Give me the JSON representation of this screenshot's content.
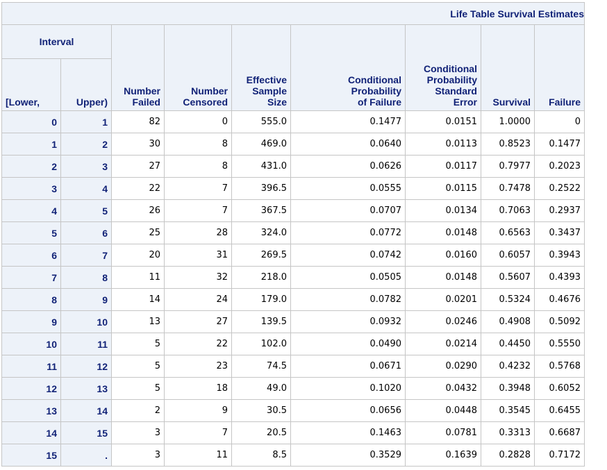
{
  "title": "Life Table Survival Estimates",
  "headers": {
    "interval": "Interval",
    "lower": "[Lower,",
    "upper": "Upper)",
    "number_failed": [
      "Number",
      "Failed"
    ],
    "number_censored": [
      "Number",
      "Censored"
    ],
    "effective_sample_size": [
      "Effective",
      "Sample",
      "Size"
    ],
    "cond_prob_failure": [
      "Conditional",
      "Probability",
      "of Failure"
    ],
    "cond_prob_se": [
      "Conditional",
      "Probability",
      "Standard",
      "Error"
    ],
    "survival": "Survival",
    "failure": "Failure"
  },
  "rows": [
    {
      "lower": "0",
      "upper": "1",
      "failed": "82",
      "censored": "0",
      "eff": "555.0",
      "cpf": "0.1477",
      "cpse": "0.0151",
      "surv": "1.0000",
      "fail": "0"
    },
    {
      "lower": "1",
      "upper": "2",
      "failed": "30",
      "censored": "8",
      "eff": "469.0",
      "cpf": "0.0640",
      "cpse": "0.0113",
      "surv": "0.8523",
      "fail": "0.1477"
    },
    {
      "lower": "2",
      "upper": "3",
      "failed": "27",
      "censored": "8",
      "eff": "431.0",
      "cpf": "0.0626",
      "cpse": "0.0117",
      "surv": "0.7977",
      "fail": "0.2023"
    },
    {
      "lower": "3",
      "upper": "4",
      "failed": "22",
      "censored": "7",
      "eff": "396.5",
      "cpf": "0.0555",
      "cpse": "0.0115",
      "surv": "0.7478",
      "fail": "0.2522"
    },
    {
      "lower": "4",
      "upper": "5",
      "failed": "26",
      "censored": "7",
      "eff": "367.5",
      "cpf": "0.0707",
      "cpse": "0.0134",
      "surv": "0.7063",
      "fail": "0.2937"
    },
    {
      "lower": "5",
      "upper": "6",
      "failed": "25",
      "censored": "28",
      "eff": "324.0",
      "cpf": "0.0772",
      "cpse": "0.0148",
      "surv": "0.6563",
      "fail": "0.3437"
    },
    {
      "lower": "6",
      "upper": "7",
      "failed": "20",
      "censored": "31",
      "eff": "269.5",
      "cpf": "0.0742",
      "cpse": "0.0160",
      "surv": "0.6057",
      "fail": "0.3943"
    },
    {
      "lower": "7",
      "upper": "8",
      "failed": "11",
      "censored": "32",
      "eff": "218.0",
      "cpf": "0.0505",
      "cpse": "0.0148",
      "surv": "0.5607",
      "fail": "0.4393"
    },
    {
      "lower": "8",
      "upper": "9",
      "failed": "14",
      "censored": "24",
      "eff": "179.0",
      "cpf": "0.0782",
      "cpse": "0.0201",
      "surv": "0.5324",
      "fail": "0.4676"
    },
    {
      "lower": "9",
      "upper": "10",
      "failed": "13",
      "censored": "27",
      "eff": "139.5",
      "cpf": "0.0932",
      "cpse": "0.0246",
      "surv": "0.4908",
      "fail": "0.5092"
    },
    {
      "lower": "10",
      "upper": "11",
      "failed": "5",
      "censored": "22",
      "eff": "102.0",
      "cpf": "0.0490",
      "cpse": "0.0214",
      "surv": "0.4450",
      "fail": "0.5550"
    },
    {
      "lower": "11",
      "upper": "12",
      "failed": "5",
      "censored": "23",
      "eff": "74.5",
      "cpf": "0.0671",
      "cpse": "0.0290",
      "surv": "0.4232",
      "fail": "0.5768"
    },
    {
      "lower": "12",
      "upper": "13",
      "failed": "5",
      "censored": "18",
      "eff": "49.0",
      "cpf": "0.1020",
      "cpse": "0.0432",
      "surv": "0.3948",
      "fail": "0.6052"
    },
    {
      "lower": "13",
      "upper": "14",
      "failed": "2",
      "censored": "9",
      "eff": "30.5",
      "cpf": "0.0656",
      "cpse": "0.0448",
      "surv": "0.3545",
      "fail": "0.6455"
    },
    {
      "lower": "14",
      "upper": "15",
      "failed": "3",
      "censored": "7",
      "eff": "20.5",
      "cpf": "0.1463",
      "cpse": "0.0781",
      "surv": "0.3313",
      "fail": "0.6687"
    },
    {
      "lower": "15",
      "upper": ".",
      "failed": "3",
      "censored": "11",
      "eff": "8.5",
      "cpf": "0.3529",
      "cpse": "0.1639",
      "surv": "0.2828",
      "fail": "0.7172"
    }
  ]
}
